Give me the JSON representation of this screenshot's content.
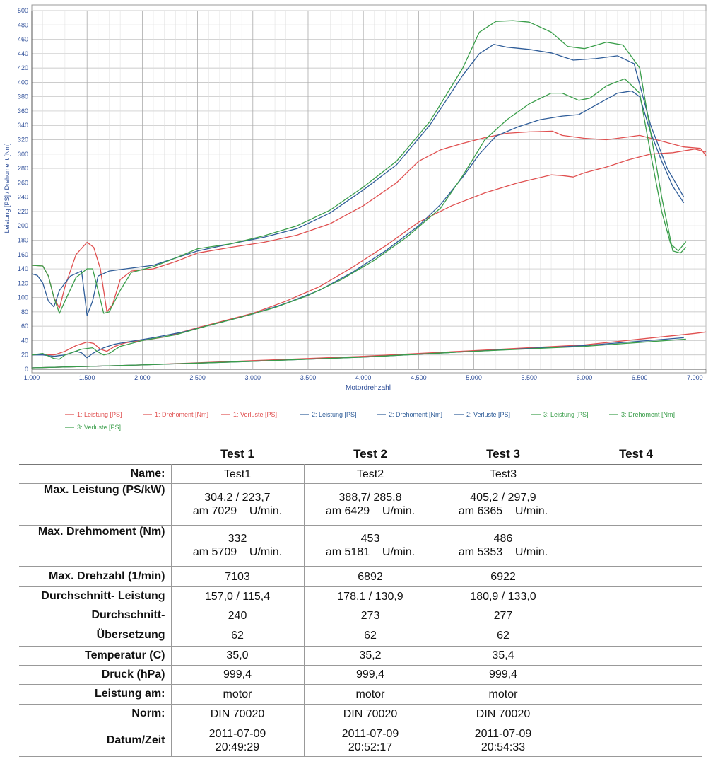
{
  "chart_data": {
    "type": "line",
    "xlabel": "Motordrehzahl",
    "ylabel": "Leistung [PS] / Drehoment [Nm]",
    "xlim": [
      1000,
      7100
    ],
    "ylim": [
      0,
      500
    ],
    "x_ticks": [
      "1.000",
      "1.500",
      "2.000",
      "2.500",
      "3.000",
      "3.500",
      "4.000",
      "4.500",
      "5.000",
      "5.500",
      "6.000",
      "6.500",
      "7.000"
    ],
    "y_ticks": [
      "0",
      "20",
      "40",
      "60",
      "80",
      "100",
      "120",
      "140",
      "160",
      "180",
      "200",
      "220",
      "240",
      "260",
      "280",
      "300",
      "320",
      "340",
      "360",
      "380",
      "400",
      "420",
      "440",
      "460",
      "480",
      "500"
    ],
    "grid": true,
    "legend_position": "bottom",
    "series": [
      {
        "name": "1: Leistung [PS]",
        "color": "#e05050",
        "points": [
          [
            1000,
            20
          ],
          [
            1100,
            21
          ],
          [
            1200,
            20
          ],
          [
            1300,
            25
          ],
          [
            1400,
            33
          ],
          [
            1500,
            38
          ],
          [
            1560,
            36
          ],
          [
            1620,
            28
          ],
          [
            1680,
            25
          ],
          [
            1750,
            32
          ],
          [
            1850,
            37
          ],
          [
            2000,
            40
          ],
          [
            2200,
            45
          ],
          [
            2500,
            58
          ],
          [
            2800,
            70
          ],
          [
            3000,
            78
          ],
          [
            3300,
            95
          ],
          [
            3600,
            115
          ],
          [
            3900,
            142
          ],
          [
            4200,
            172
          ],
          [
            4500,
            205
          ],
          [
            4800,
            228
          ],
          [
            5100,
            246
          ],
          [
            5400,
            260
          ],
          [
            5700,
            271
          ],
          [
            5800,
            270
          ],
          [
            5900,
            268
          ],
          [
            6000,
            274
          ],
          [
            6200,
            282
          ],
          [
            6400,
            292
          ],
          [
            6600,
            300
          ],
          [
            6800,
            302
          ],
          [
            7000,
            307
          ],
          [
            7100,
            303
          ]
        ]
      },
      {
        "name": "1: Drehoment [Nm]",
        "color": "#e05050",
        "points": [
          [
            1000,
            145
          ],
          [
            1100,
            144
          ],
          [
            1150,
            130
          ],
          [
            1200,
            100
          ],
          [
            1250,
            85
          ],
          [
            1300,
            115
          ],
          [
            1400,
            160
          ],
          [
            1500,
            177
          ],
          [
            1560,
            170
          ],
          [
            1620,
            140
          ],
          [
            1680,
            80
          ],
          [
            1730,
            90
          ],
          [
            1800,
            125
          ],
          [
            1900,
            137
          ],
          [
            2100,
            140
          ],
          [
            2300,
            150
          ],
          [
            2500,
            162
          ],
          [
            2800,
            170
          ],
          [
            3100,
            177
          ],
          [
            3400,
            187
          ],
          [
            3700,
            203
          ],
          [
            4000,
            228
          ],
          [
            4300,
            260
          ],
          [
            4500,
            290
          ],
          [
            4700,
            306
          ],
          [
            4900,
            315
          ],
          [
            5100,
            323
          ],
          [
            5300,
            329
          ],
          [
            5500,
            331
          ],
          [
            5709,
            332
          ],
          [
            5800,
            326
          ],
          [
            6000,
            322
          ],
          [
            6200,
            320
          ],
          [
            6400,
            324
          ],
          [
            6500,
            326
          ],
          [
            6700,
            318
          ],
          [
            6900,
            310
          ],
          [
            7050,
            308
          ],
          [
            7100,
            298
          ]
        ]
      },
      {
        "name": "1: Verluste [PS]",
        "color": "#e05050",
        "points": [
          [
            1000,
            2
          ],
          [
            2000,
            6
          ],
          [
            3000,
            12
          ],
          [
            4000,
            18
          ],
          [
            5000,
            26
          ],
          [
            6000,
            34
          ],
          [
            7000,
            50
          ],
          [
            7100,
            52
          ]
        ]
      },
      {
        "name": "2: Leistung [PS]",
        "color": "#2f5d99",
        "points": [
          [
            1000,
            20
          ],
          [
            1100,
            20
          ],
          [
            1200,
            18
          ],
          [
            1300,
            20
          ],
          [
            1400,
            25
          ],
          [
            1450,
            23
          ],
          [
            1500,
            16
          ],
          [
            1550,
            22
          ],
          [
            1650,
            30
          ],
          [
            1750,
            35
          ],
          [
            1900,
            39
          ],
          [
            2100,
            44
          ],
          [
            2400,
            53
          ],
          [
            2700,
            65
          ],
          [
            3000,
            77
          ],
          [
            3300,
            92
          ],
          [
            3600,
            110
          ],
          [
            3900,
            135
          ],
          [
            4200,
            165
          ],
          [
            4500,
            200
          ],
          [
            4700,
            230
          ],
          [
            4900,
            268
          ],
          [
            5050,
            300
          ],
          [
            5200,
            325
          ],
          [
            5400,
            338
          ],
          [
            5600,
            348
          ],
          [
            5800,
            353
          ],
          [
            5950,
            355
          ],
          [
            6100,
            368
          ],
          [
            6300,
            385
          ],
          [
            6429,
            388
          ],
          [
            6500,
            380
          ],
          [
            6600,
            330
          ],
          [
            6700,
            290
          ],
          [
            6800,
            255
          ],
          [
            6900,
            232
          ]
        ]
      },
      {
        "name": "2: Drehoment [Nm]",
        "color": "#2f5d99",
        "points": [
          [
            1000,
            133
          ],
          [
            1050,
            131
          ],
          [
            1100,
            120
          ],
          [
            1150,
            95
          ],
          [
            1200,
            87
          ],
          [
            1250,
            110
          ],
          [
            1350,
            130
          ],
          [
            1450,
            137
          ],
          [
            1500,
            75
          ],
          [
            1550,
            95
          ],
          [
            1600,
            130
          ],
          [
            1700,
            137
          ],
          [
            1900,
            141
          ],
          [
            2100,
            145
          ],
          [
            2300,
            155
          ],
          [
            2500,
            165
          ],
          [
            2800,
            175
          ],
          [
            3100,
            184
          ],
          [
            3400,
            196
          ],
          [
            3700,
            218
          ],
          [
            4000,
            250
          ],
          [
            4300,
            285
          ],
          [
            4600,
            340
          ],
          [
            4900,
            410
          ],
          [
            5050,
            440
          ],
          [
            5181,
            453
          ],
          [
            5300,
            449
          ],
          [
            5500,
            446
          ],
          [
            5700,
            441
          ],
          [
            5900,
            431
          ],
          [
            6100,
            433
          ],
          [
            6300,
            437
          ],
          [
            6450,
            426
          ],
          [
            6600,
            340
          ],
          [
            6750,
            280
          ],
          [
            6900,
            240
          ]
        ]
      },
      {
        "name": "2: Verluste [PS]",
        "color": "#2f5d99",
        "points": [
          [
            1000,
            2
          ],
          [
            2000,
            6
          ],
          [
            3000,
            11
          ],
          [
            4000,
            17
          ],
          [
            5000,
            25
          ],
          [
            6000,
            33
          ],
          [
            6900,
            44
          ]
        ]
      },
      {
        "name": "3: Leistung [PS]",
        "color": "#3a9e4a",
        "points": [
          [
            1000,
            20
          ],
          [
            1100,
            22
          ],
          [
            1200,
            15
          ],
          [
            1250,
            14
          ],
          [
            1300,
            20
          ],
          [
            1450,
            28
          ],
          [
            1550,
            30
          ],
          [
            1600,
            24
          ],
          [
            1650,
            20
          ],
          [
            1700,
            22
          ],
          [
            1800,
            32
          ],
          [
            2000,
            40
          ],
          [
            2300,
            48
          ],
          [
            2600,
            61
          ],
          [
            2900,
            73
          ],
          [
            3200,
            86
          ],
          [
            3500,
            103
          ],
          [
            3800,
            125
          ],
          [
            4100,
            152
          ],
          [
            4400,
            185
          ],
          [
            4700,
            225
          ],
          [
            4900,
            270
          ],
          [
            5100,
            320
          ],
          [
            5300,
            348
          ],
          [
            5500,
            370
          ],
          [
            5700,
            385
          ],
          [
            5800,
            385
          ],
          [
            5950,
            375
          ],
          [
            6050,
            378
          ],
          [
            6200,
            395
          ],
          [
            6365,
            405
          ],
          [
            6500,
            385
          ],
          [
            6600,
            300
          ],
          [
            6700,
            220
          ],
          [
            6780,
            175
          ],
          [
            6850,
            165
          ],
          [
            6920,
            178
          ]
        ]
      },
      {
        "name": "3: Drehoment [Nm]",
        "color": "#3a9e4a",
        "points": [
          [
            1000,
            145
          ],
          [
            1100,
            144
          ],
          [
            1150,
            130
          ],
          [
            1200,
            100
          ],
          [
            1250,
            78
          ],
          [
            1300,
            95
          ],
          [
            1400,
            128
          ],
          [
            1500,
            140
          ],
          [
            1550,
            140
          ],
          [
            1600,
            110
          ],
          [
            1650,
            78
          ],
          [
            1700,
            80
          ],
          [
            1800,
            110
          ],
          [
            1900,
            135
          ],
          [
            2100,
            143
          ],
          [
            2300,
            155
          ],
          [
            2500,
            168
          ],
          [
            2800,
            175
          ],
          [
            3100,
            186
          ],
          [
            3400,
            200
          ],
          [
            3700,
            222
          ],
          [
            4000,
            254
          ],
          [
            4300,
            290
          ],
          [
            4600,
            345
          ],
          [
            4900,
            420
          ],
          [
            5050,
            470
          ],
          [
            5200,
            485
          ],
          [
            5353,
            486
          ],
          [
            5500,
            484
          ],
          [
            5700,
            470
          ],
          [
            5850,
            450
          ],
          [
            6000,
            447
          ],
          [
            6200,
            456
          ],
          [
            6350,
            452
          ],
          [
            6500,
            420
          ],
          [
            6600,
            330
          ],
          [
            6700,
            240
          ],
          [
            6800,
            165
          ],
          [
            6870,
            162
          ],
          [
            6920,
            170
          ]
        ]
      },
      {
        "name": "3: Verluste [PS]",
        "color": "#3a9e4a",
        "points": [
          [
            1000,
            2
          ],
          [
            2000,
            6
          ],
          [
            3000,
            11
          ],
          [
            4000,
            17
          ],
          [
            5000,
            25
          ],
          [
            6000,
            32
          ],
          [
            6920,
            42
          ]
        ]
      }
    ]
  },
  "table": {
    "headers": [
      "Test 1",
      "Test 2",
      "Test 3",
      "Test 4"
    ],
    "rows": [
      {
        "label": "Name:",
        "cells": [
          [
            "Test1"
          ],
          [
            "Test2"
          ],
          [
            "Test3"
          ],
          []
        ]
      },
      {
        "label": "Max. Leistung (PS/kW)",
        "cells": [
          [
            "304,2 / 223,7",
            "am 7029    U/min."
          ],
          [
            "388,7/ 285,8",
            "am 6429    U/min."
          ],
          [
            "405,2 / 297,9",
            "am 6365    U/min."
          ],
          []
        ]
      },
      {
        "label": "Max. Drehmoment (Nm)",
        "cells": [
          [
            "332",
            "am 5709    U/min."
          ],
          [
            "453",
            "am 5181    U/min."
          ],
          [
            "486",
            "am 5353    U/min."
          ],
          []
        ]
      },
      {
        "label": "Max. Drehzahl (1/min)",
        "cells": [
          [
            "7103"
          ],
          [
            "6892"
          ],
          [
            "6922"
          ],
          []
        ]
      },
      {
        "label": "Durchschnitt- Leistung",
        "cells": [
          [
            "157,0 / 115,4"
          ],
          [
            "178,1 / 130,9"
          ],
          [
            "180,9 / 133,0"
          ],
          []
        ]
      },
      {
        "label": "Durchschnitt-",
        "cells": [
          [
            "240"
          ],
          [
            "273"
          ],
          [
            "277"
          ],
          []
        ]
      },
      {
        "label": "Übersetzung",
        "cells": [
          [
            "62"
          ],
          [
            "62"
          ],
          [
            "62"
          ],
          []
        ]
      },
      {
        "label": "Temperatur (C)",
        "cells": [
          [
            "35,0"
          ],
          [
            "35,2"
          ],
          [
            "35,4"
          ],
          []
        ]
      },
      {
        "label": "Druck (hPa)",
        "cells": [
          [
            "999,4"
          ],
          [
            "999,4"
          ],
          [
            "999,4"
          ],
          []
        ]
      },
      {
        "label": "Leistung am:",
        "cells": [
          [
            "motor"
          ],
          [
            "motor"
          ],
          [
            "motor"
          ],
          []
        ]
      },
      {
        "label": "Norm:",
        "cells": [
          [
            "DIN 70020"
          ],
          [
            "DIN 70020"
          ],
          [
            "DIN 70020"
          ],
          []
        ]
      },
      {
        "label": "Datum/Zeit",
        "cells": [
          [
            "2011-07-09",
            "20:49:29"
          ],
          [
            "2011-07-09",
            "20:52:17"
          ],
          [
            "2011-07-09",
            "20:54:33"
          ],
          []
        ]
      }
    ]
  }
}
